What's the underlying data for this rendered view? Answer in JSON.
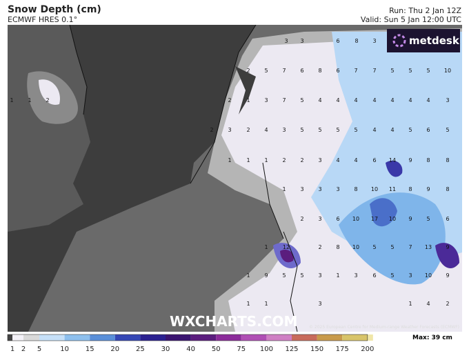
{
  "header": {
    "title": "Snow Depth (cm)",
    "model": "ECMWF HRES 0.1°",
    "run": "Run: Thu 2 Jan 12Z",
    "valid": "Valid: Sun 5 Jan 12:00 UTC"
  },
  "map": {
    "logo": "metdesk",
    "watermark": "WXCHARTS.COM",
    "copyright": "© 2025 European Centre for Medium-range Weather Forecasts (ECMWF)",
    "labels": [
      [
        3,
        3,
        6,
        8,
        3
      ],
      [
        2,
        5,
        7,
        6,
        8,
        6,
        7,
        7,
        5,
        5,
        5,
        10
      ],
      [
        1,
        1,
        2,
        2,
        1,
        3,
        7,
        5,
        4,
        4,
        4,
        4,
        4,
        4,
        4,
        3
      ],
      [
        2,
        3,
        2,
        4,
        3,
        5,
        5,
        5,
        5,
        4,
        4,
        5,
        6,
        5
      ],
      [
        1,
        1,
        1,
        2,
        2,
        3,
        4,
        4,
        6,
        14,
        9,
        8,
        8
      ],
      [
        1,
        3,
        3,
        3,
        8,
        10,
        11,
        8,
        9,
        8
      ],
      [
        2,
        3,
        6,
        10,
        17,
        10,
        9,
        5,
        6
      ],
      [
        1,
        12,
        2,
        8,
        10,
        5,
        5,
        7,
        13,
        9
      ],
      [
        1,
        9,
        5,
        5,
        3,
        1,
        3,
        6,
        5,
        3,
        10,
        9
      ],
      [
        1,
        1,
        3,
        1,
        4,
        2
      ]
    ]
  },
  "legend": {
    "ticks": [
      1,
      2,
      5,
      10,
      15,
      20,
      25,
      30,
      40,
      50,
      75,
      100,
      125,
      150,
      175,
      200
    ],
    "max": "Max: 39 cm"
  }
}
